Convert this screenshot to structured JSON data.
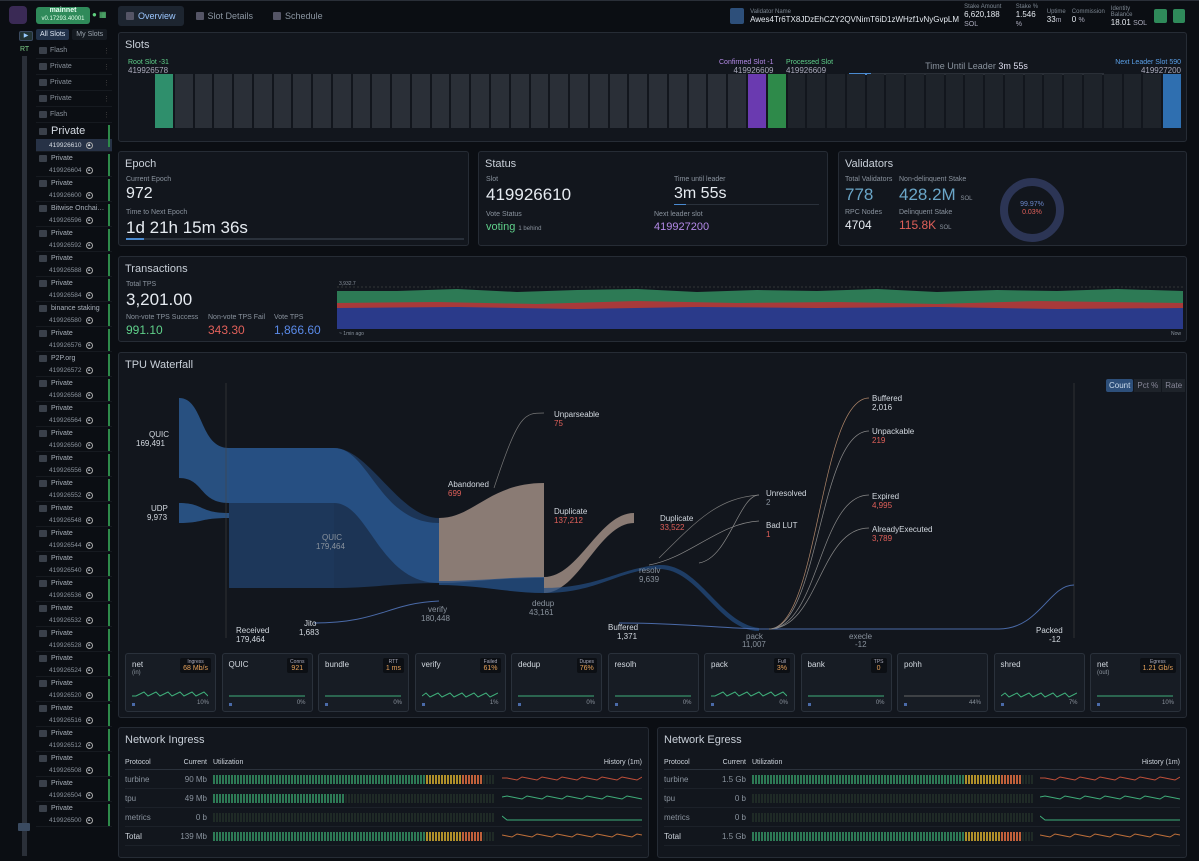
{
  "app": {
    "network": "mainnet",
    "version": "v0.17293.40001",
    "rt_label": "RT"
  },
  "nav": [
    {
      "label": "Overview",
      "active": true
    },
    {
      "label": "Slot Details"
    },
    {
      "label": "Schedule"
    }
  ],
  "validator": {
    "name_label": "Validator Name",
    "name": "Awes4Tr6TX8JDzEhCZY2QVNimT6iD1zWHzf1vNyGvpLM",
    "stake_label": "Stake Amount",
    "stake": "6,620,188",
    "stake_unit": "SOL",
    "stakepct_label": "Stake %",
    "stakepct": "1.546",
    "uptime_label": "Uptime",
    "uptime": "33",
    "uptime_unit": "m",
    "commission_label": "Commission",
    "commission": "0",
    "balance_label": "Identity Balance",
    "balance": "18.01",
    "balance_unit": "SOL"
  },
  "sidebar": {
    "tabs": [
      "All Slots",
      "My Slots"
    ],
    "top_rows": [
      "Flash",
      "Private",
      "Private",
      "Private",
      "Flash"
    ],
    "current": {
      "name": "Private",
      "slot": "419926610"
    },
    "groups": [
      {
        "name": "Private",
        "slot": "419926604"
      },
      {
        "name": "Private",
        "slot": "419926600"
      },
      {
        "name": "Bitwise Onchai…",
        "slot": "419926596"
      },
      {
        "name": "Private",
        "slot": "419926592"
      },
      {
        "name": "Private",
        "slot": "419926588"
      },
      {
        "name": "Private",
        "slot": "419926584"
      },
      {
        "name": "binance staking",
        "slot": "419926580"
      },
      {
        "name": "Private",
        "slot": "419926576"
      },
      {
        "name": "P2P.org",
        "slot": "419926572"
      },
      {
        "name": "Private",
        "slot": "419926568"
      },
      {
        "name": "Private",
        "slot": "419926564"
      },
      {
        "name": "Private",
        "slot": "419926560"
      },
      {
        "name": "Private",
        "slot": "419926556"
      },
      {
        "name": "Private",
        "slot": "419926552"
      },
      {
        "name": "Private",
        "slot": "419926548"
      },
      {
        "name": "Private",
        "slot": "419926544"
      },
      {
        "name": "Private",
        "slot": "419926540"
      },
      {
        "name": "Private",
        "slot": "419926536"
      },
      {
        "name": "Private",
        "slot": "419926532"
      },
      {
        "name": "Private",
        "slot": "419926528"
      },
      {
        "name": "Private",
        "slot": "419926524"
      },
      {
        "name": "Private",
        "slot": "419926520"
      },
      {
        "name": "Private",
        "slot": "419926516"
      },
      {
        "name": "Private",
        "slot": "419926512"
      },
      {
        "name": "Private",
        "slot": "419926508"
      },
      {
        "name": "Private",
        "slot": "419926504"
      },
      {
        "name": "Private",
        "slot": "419926500"
      }
    ]
  },
  "slots": {
    "title": "Slots",
    "root_label": "Root Slot",
    "root_delta": "-31",
    "root": "419926578",
    "confirmed_label": "Confirmed Slot",
    "confirmed_delta": "-1",
    "confirmed": "419926609",
    "processed_label": "Processed Slot",
    "processed": "419926609",
    "time_label": "Time Until Leader",
    "time": "3m 55s",
    "next_label": "Next Leader Slot",
    "next_delta": "590",
    "next": "419927200"
  },
  "epoch": {
    "title": "Epoch",
    "current_label": "Current Epoch",
    "current": "972",
    "next_label": "Time to Next Epoch",
    "next": "1d 21h 15m 36s"
  },
  "status": {
    "title": "Status",
    "slot_label": "Slot",
    "slot": "419926610",
    "vote_label": "Vote Status",
    "vote": "voting",
    "vote_sub": "1 behind",
    "tul_label": "Time until leader",
    "tul": "3m 55s",
    "nls_label": "Next leader slot",
    "nls": "419927200"
  },
  "validators": {
    "title": "Validators",
    "total_label": "Total Validators",
    "total": "778",
    "nd_label": "Non-delinquent Stake",
    "nd": "428.2M",
    "nd_unit": "SOL",
    "rpc_label": "RPC Nodes",
    "rpc": "4704",
    "del_label": "Delinquent Stake",
    "del": "115.8K",
    "del_unit": "SOL",
    "ring_a": "99.97%",
    "ring_b": "0.03%"
  },
  "transactions": {
    "title": "Transactions",
    "total_label": "Total TPS",
    "total": "3,201.00",
    "success_label": "Non-vote TPS Success",
    "success": "991.10",
    "fail_label": "Non-vote TPS Fail",
    "fail": "343.30",
    "vote_label": "Vote TPS",
    "vote": "1,866.60",
    "chart_max": "3,932.7",
    "chart_left": "~ 1min ago",
    "chart_right": "Now"
  },
  "waterfall": {
    "title": "TPU Waterfall",
    "toggles": [
      "Count",
      "Pct %",
      "Rate"
    ],
    "nodes": {
      "quic": {
        "l": "QUIC",
        "v": "169,491"
      },
      "udp": {
        "l": "UDP",
        "v": "9,973"
      },
      "received": {
        "l": "Received",
        "v": "179,464"
      },
      "jito": {
        "l": "Jito",
        "v": "1,683"
      },
      "quic2": {
        "l": "QUIC",
        "v": "179,464"
      },
      "verify": {
        "l": "verify",
        "v": "180,448"
      },
      "dedup": {
        "l": "dedup",
        "v": "43,161"
      },
      "resolv": {
        "l": "resolv",
        "v": "9,639"
      },
      "pack": {
        "l": "pack",
        "v": "11,007"
      },
      "execle": {
        "l": "execle",
        "v": "-12"
      },
      "unparseable": {
        "l": "Unparseable",
        "v": "75"
      },
      "abandoned": {
        "l": "Abandoned",
        "v": "699"
      },
      "duplicate1": {
        "l": "Duplicate",
        "v": "137,212"
      },
      "duplicate2": {
        "l": "Duplicate",
        "v": "33,522"
      },
      "unresolved": {
        "l": "Unresolved",
        "v": "2"
      },
      "badlut": {
        "l": "Bad LUT",
        "v": "1"
      },
      "buffered1": {
        "l": "Buffered",
        "v": "1,371"
      },
      "buffered2": {
        "l": "Buffered",
        "v": "2,016"
      },
      "unpackable": {
        "l": "Unpackable",
        "v": "219"
      },
      "expired": {
        "l": "Expired",
        "v": "4,995"
      },
      "already": {
        "l": "AlreadyExecuted",
        "v": "3,789"
      },
      "packed": {
        "l": "Packed",
        "v": "-12"
      }
    }
  },
  "cards": [
    {
      "t": "net",
      "s": "(in)",
      "bl": "Ingress",
      "bv": "68 Mb/s",
      "pct": "10%"
    },
    {
      "t": "QUIC",
      "bl": "Conns",
      "bv": "921",
      "pct": "0%"
    },
    {
      "t": "bundle",
      "bl": "RTT",
      "bv": "1 ms",
      "pct": "0%"
    },
    {
      "t": "verify",
      "bl": "Failed",
      "bv": "61%",
      "pct": "1%"
    },
    {
      "t": "dedup",
      "bl": "Dupes",
      "bv": "76%",
      "pct": "0%"
    },
    {
      "t": "resolh",
      "pct": "0%"
    },
    {
      "t": "pack",
      "bl": "Full",
      "bv": "3%",
      "pct": "0%"
    },
    {
      "t": "bank",
      "bl": "TPS",
      "bv": "0",
      "pct": "0%"
    },
    {
      "t": "pohh",
      "pct": "44%"
    },
    {
      "t": "shred",
      "pct": "7%"
    },
    {
      "t": "net",
      "s": "(out)",
      "bl": "Egress",
      "bv": "1.21 Gb/s",
      "pct": "10%"
    }
  ],
  "ingress": {
    "title": "Network Ingress",
    "cols": [
      "Protocol",
      "Current",
      "Utilization",
      "History (1m)"
    ],
    "rows": [
      {
        "p": "turbine",
        "c": "90 Mb"
      },
      {
        "p": "tpu",
        "c": "49 Mb"
      },
      {
        "p": "metrics",
        "c": "0 b"
      },
      {
        "p": "Total",
        "c": "139 Mb"
      }
    ]
  },
  "egress": {
    "title": "Network Egress",
    "cols": [
      "Protocol",
      "Current",
      "Utilization",
      "History (1m)"
    ],
    "rows": [
      {
        "p": "turbine",
        "c": "1.5 Gb"
      },
      {
        "p": "tpu",
        "c": "0 b"
      },
      {
        "p": "metrics",
        "c": "0 b"
      },
      {
        "p": "Total",
        "c": "1.5 Gb"
      }
    ]
  }
}
